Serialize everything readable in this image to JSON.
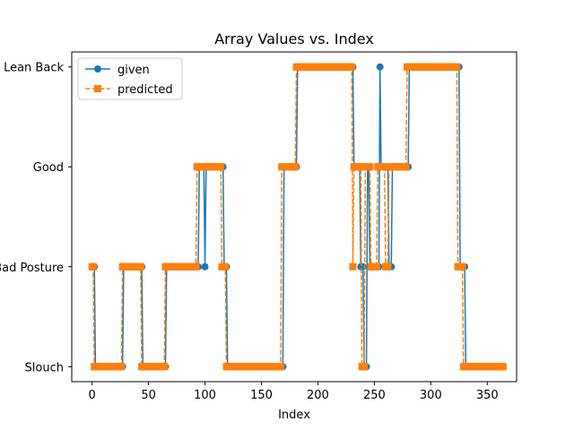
{
  "chart_data": {
    "type": "line",
    "title": "Array Values vs. Index",
    "xlabel": "Index",
    "ylabel": "",
    "xlim": [
      -18,
      376
    ],
    "ylim": [
      -0.15,
      3.15
    ],
    "x_ticks": [
      0,
      50,
      100,
      150,
      200,
      250,
      300,
      350
    ],
    "x_tick_labels": [
      "0",
      "50",
      "100",
      "150",
      "200",
      "250",
      "300",
      "350"
    ],
    "y_ticks": [
      0,
      1,
      2,
      3
    ],
    "y_tick_labels": [
      "Slouch",
      "Bad Posture",
      "Good",
      "Lean Back"
    ],
    "grid": false,
    "legend_position": "top-left",
    "series": [
      {
        "name": "given",
        "color": "#1f77b4",
        "marker": "circle",
        "linestyle": "solid",
        "segments": [
          [
            0,
            2,
            1
          ],
          [
            3,
            27,
            0
          ],
          [
            28,
            44,
            1
          ],
          [
            45,
            65,
            0
          ],
          [
            66,
            94,
            1
          ],
          [
            95,
            99,
            2
          ],
          [
            100,
            100,
            1
          ],
          [
            101,
            116,
            2
          ],
          [
            117,
            119,
            1
          ],
          [
            120,
            169,
            0
          ],
          [
            170,
            181,
            2
          ],
          [
            182,
            231,
            3
          ],
          [
            232,
            237,
            2
          ],
          [
            238,
            240,
            1
          ],
          [
            241,
            243,
            0
          ],
          [
            244,
            245,
            2
          ],
          [
            246,
            254,
            1
          ],
          [
            255,
            255,
            3
          ],
          [
            256,
            262,
            2
          ],
          [
            263,
            265,
            1
          ],
          [
            266,
            280,
            2
          ],
          [
            281,
            325,
            3
          ],
          [
            326,
            330,
            1
          ],
          [
            331,
            364,
            0
          ]
        ]
      },
      {
        "name": "predicted",
        "color": "#ff7f0e",
        "marker": "square",
        "linestyle": "dashed",
        "segments": [
          [
            0,
            1,
            1
          ],
          [
            2,
            26,
            0
          ],
          [
            27,
            43,
            1
          ],
          [
            44,
            64,
            0
          ],
          [
            65,
            92,
            1
          ],
          [
            93,
            114,
            2
          ],
          [
            115,
            118,
            1
          ],
          [
            119,
            167,
            0
          ],
          [
            168,
            180,
            2
          ],
          [
            181,
            230,
            3
          ],
          [
            231,
            231,
            1
          ],
          [
            232,
            238,
            2
          ],
          [
            239,
            241,
            0
          ],
          [
            242,
            246,
            2
          ],
          [
            247,
            252,
            1
          ],
          [
            253,
            259,
            2
          ],
          [
            260,
            262,
            1
          ],
          [
            263,
            278,
            2
          ],
          [
            279,
            323,
            3
          ],
          [
            324,
            328,
            1
          ],
          [
            329,
            364,
            0
          ]
        ]
      }
    ]
  }
}
